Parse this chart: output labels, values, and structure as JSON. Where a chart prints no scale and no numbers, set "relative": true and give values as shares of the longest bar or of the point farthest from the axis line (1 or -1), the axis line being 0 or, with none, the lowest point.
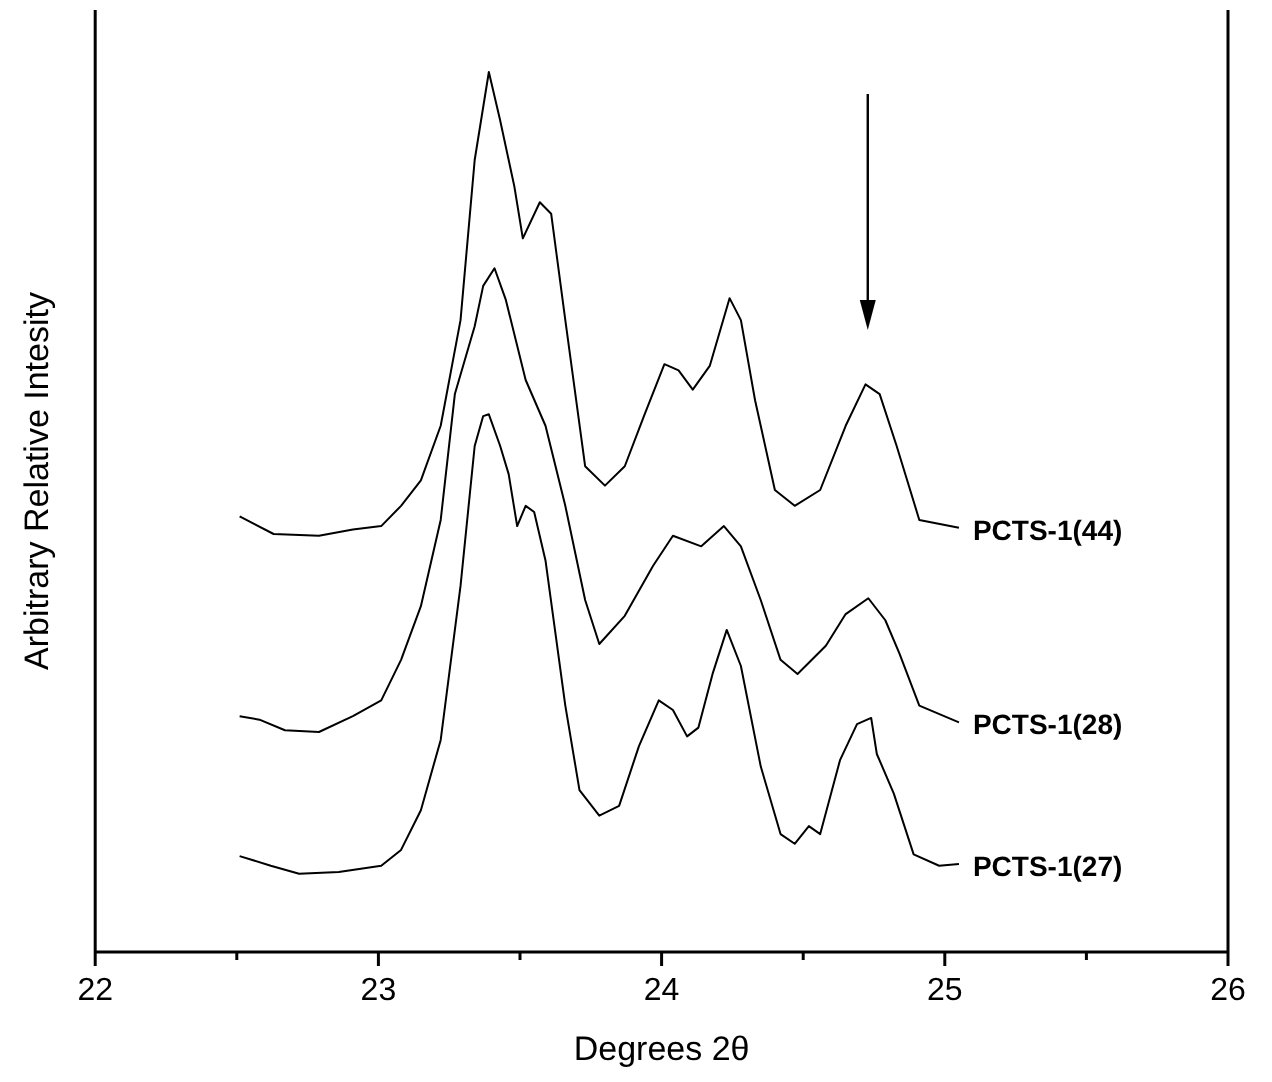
{
  "chart_data": {
    "type": "line",
    "relative": true,
    "xlabel": "Degrees 2θ",
    "ylabel": "Arbitrary Relative Intesity",
    "xlim": [
      22,
      26
    ],
    "xticks": [
      22,
      {
        "value": 22.5,
        "label": null
      },
      23,
      {
        "value": 23.5,
        "label": null
      },
      24,
      {
        "value": 24.5,
        "label": null
      },
      25,
      {
        "value": 25.5,
        "label": null
      },
      26
    ],
    "grid": false,
    "marker": "none",
    "line_style": "solid",
    "series": [
      {
        "name": "PCTS-1(44)",
        "color": "#000000",
        "x": [
          22.51,
          22.63,
          22.79,
          22.91,
          23.01,
          23.08,
          23.15,
          23.22,
          23.29,
          23.34,
          23.39,
          23.43,
          23.48,
          23.51,
          23.57,
          23.61,
          23.66,
          23.73,
          23.8,
          23.87,
          23.94,
          24.01,
          24.06,
          24.11,
          24.17,
          24.24,
          24.28,
          24.33,
          24.4,
          24.47,
          24.56,
          24.65,
          24.72,
          24.77,
          24.83,
          24.91,
          25.05
        ],
        "values": [
          0.495,
          0.475,
          0.473,
          0.48,
          0.484,
          0.507,
          0.536,
          0.598,
          0.718,
          0.9,
          1.0,
          0.945,
          0.87,
          0.811,
          0.852,
          0.839,
          0.718,
          0.552,
          0.53,
          0.552,
          0.611,
          0.668,
          0.661,
          0.639,
          0.666,
          0.743,
          0.718,
          0.627,
          0.525,
          0.507,
          0.525,
          0.598,
          0.645,
          0.634,
          0.575,
          0.491,
          0.482
        ]
      },
      {
        "name": "PCTS-1(28)",
        "color": "#000000",
        "x": [
          22.51,
          22.58,
          22.67,
          22.79,
          22.91,
          23.01,
          23.08,
          23.15,
          23.22,
          23.27,
          23.34,
          23.37,
          23.41,
          23.45,
          23.52,
          23.59,
          23.66,
          23.73,
          23.78,
          23.87,
          23.97,
          24.04,
          24.14,
          24.22,
          24.28,
          24.35,
          24.42,
          24.48,
          24.58,
          24.65,
          24.73,
          24.79,
          24.84,
          24.91,
          25.05
        ],
        "values": [
          0.268,
          0.264,
          0.252,
          0.25,
          0.268,
          0.286,
          0.332,
          0.393,
          0.491,
          0.634,
          0.711,
          0.757,
          0.777,
          0.741,
          0.65,
          0.598,
          0.507,
          0.4,
          0.35,
          0.382,
          0.439,
          0.473,
          0.461,
          0.484,
          0.461,
          0.4,
          0.332,
          0.316,
          0.348,
          0.384,
          0.402,
          0.377,
          0.339,
          0.28,
          0.261
        ]
      },
      {
        "name": "PCTS-1(27)",
        "color": "#000000",
        "x": [
          22.51,
          22.62,
          22.72,
          22.86,
          23.01,
          23.08,
          23.15,
          23.22,
          23.29,
          23.34,
          23.37,
          23.39,
          23.43,
          23.46,
          23.49,
          23.52,
          23.55,
          23.59,
          23.66,
          23.71,
          23.78,
          23.85,
          23.92,
          23.99,
          24.04,
          24.09,
          24.13,
          24.18,
          24.23,
          24.28,
          24.35,
          24.42,
          24.47,
          24.52,
          24.56,
          24.63,
          24.69,
          24.74,
          24.76,
          24.82,
          24.89,
          24.98,
          25.05
        ],
        "values": [
          0.109,
          0.098,
          0.089,
          0.091,
          0.098,
          0.116,
          0.161,
          0.241,
          0.416,
          0.575,
          0.609,
          0.611,
          0.575,
          0.543,
          0.484,
          0.507,
          0.5,
          0.445,
          0.28,
          0.184,
          0.155,
          0.166,
          0.234,
          0.286,
          0.275,
          0.245,
          0.255,
          0.316,
          0.366,
          0.325,
          0.211,
          0.134,
          0.123,
          0.143,
          0.134,
          0.218,
          0.259,
          0.266,
          0.225,
          0.18,
          0.111,
          0.098,
          0.1
        ]
      }
    ]
  }
}
